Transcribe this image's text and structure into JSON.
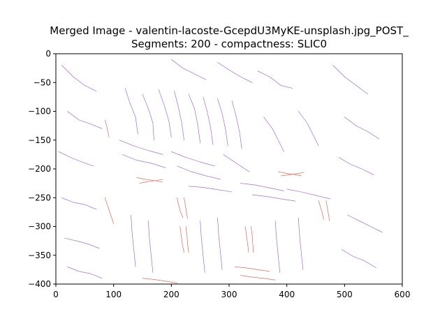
{
  "chart_data": {
    "type": "line",
    "title": "Merged Image - valentin-lacoste-GcepdU3MyKE-unsplash.jpg_POST_",
    "subtitle": "Segments: 200 - compactness: SLIC0",
    "xlabel": "",
    "ylabel": "",
    "xlim": [
      0,
      600
    ],
    "ylim": [
      -400,
      0
    ],
    "x_ticks": [
      0,
      100,
      200,
      300,
      400,
      500,
      600
    ],
    "y_ticks": [
      0,
      -50,
      -100,
      -150,
      -200,
      -250,
      -300,
      -350,
      -400
    ],
    "x_tick_labels": [
      "0",
      "100",
      "200",
      "300",
      "400",
      "500",
      "600"
    ],
    "y_tick_labels": [
      "0",
      "−50",
      "−100",
      "−150",
      "−200",
      "−250",
      "−300",
      "−350",
      "−400"
    ],
    "grid": false,
    "legend": "none",
    "colors": {
      "purple_streams": "#9a4fd6",
      "red_streams": "#ee4a3a"
    },
    "series": [
      {
        "color": "purple",
        "values": [
          [
            [
              120,
              -60
            ],
            [
              128,
              -85
            ],
            [
              138,
              -110
            ],
            [
              142,
              -140
            ]
          ],
          [
            [
              150,
              -70
            ],
            [
              160,
              -95
            ],
            [
              168,
              -120
            ],
            [
              170,
              -150
            ]
          ],
          [
            [
              178,
              -62
            ],
            [
              188,
              -90
            ],
            [
              196,
              -118
            ],
            [
              200,
              -145
            ]
          ],
          [
            [
              205,
              -65
            ],
            [
              212,
              -92
            ],
            [
              218,
              -120
            ],
            [
              222,
              -150
            ]
          ],
          [
            [
              230,
              -70
            ],
            [
              240,
              -95
            ],
            [
              246,
              -125
            ],
            [
              250,
              -155
            ]
          ],
          [
            [
              255,
              -75
            ],
            [
              262,
              -100
            ],
            [
              268,
              -128
            ],
            [
              272,
              -158
            ]
          ],
          [
            [
              280,
              -78
            ],
            [
              288,
              -104
            ],
            [
              294,
              -132
            ],
            [
              298,
              -160
            ]
          ],
          [
            [
              305,
              -82
            ],
            [
              312,
              -108
            ],
            [
              318,
              -135
            ],
            [
              322,
              -165
            ]
          ],
          [
            [
              110,
              -150
            ],
            [
              135,
              -160
            ],
            [
              160,
              -168
            ],
            [
              185,
              -175
            ]
          ],
          [
            [
              115,
              -175
            ],
            [
              140,
              -185
            ],
            [
              165,
              -190
            ],
            [
              190,
              -198
            ]
          ],
          [
            [
              200,
              -170
            ],
            [
              225,
              -180
            ],
            [
              250,
              -188
            ],
            [
              275,
              -195
            ]
          ],
          [
            [
              210,
              -195
            ],
            [
              235,
              -205
            ],
            [
              260,
              -212
            ],
            [
              285,
              -218
            ]
          ],
          [
            [
              290,
              -175
            ],
            [
              305,
              -185
            ],
            [
              320,
              -195
            ],
            [
              335,
              -205
            ]
          ],
          [
            [
              230,
              -230
            ],
            [
              255,
              -232
            ],
            [
              280,
              -236
            ],
            [
              305,
              -240
            ]
          ],
          [
            [
              320,
              -225
            ],
            [
              345,
              -228
            ],
            [
              370,
              -233
            ],
            [
              395,
              -238
            ]
          ],
          [
            [
              340,
              -245
            ],
            [
              365,
              -248
            ],
            [
              390,
              -252
            ],
            [
              415,
              -256
            ]
          ],
          [
            [
              400,
              -235
            ],
            [
              425,
              -240
            ],
            [
              450,
              -246
            ],
            [
              475,
              -252
            ]
          ],
          [
            [
              10,
              -20
            ],
            [
              30,
              -40
            ],
            [
              50,
              -55
            ],
            [
              70,
              -65
            ]
          ],
          [
            [
              20,
              -100
            ],
            [
              40,
              -115
            ],
            [
              60,
              -122
            ],
            [
              80,
              -130
            ]
          ],
          [
            [
              5,
              -170
            ],
            [
              25,
              -180
            ],
            [
              45,
              -188
            ],
            [
              65,
              -195
            ]
          ],
          [
            [
              10,
              -250
            ],
            [
              30,
              -258
            ],
            [
              50,
              -262
            ],
            [
              70,
              -270
            ]
          ],
          [
            [
              15,
              -320
            ],
            [
              35,
              -325
            ],
            [
              55,
              -330
            ],
            [
              75,
              -338
            ]
          ],
          [
            [
              20,
              -370
            ],
            [
              40,
              -378
            ],
            [
              60,
              -382
            ],
            [
              80,
              -390
            ]
          ],
          [
            [
              480,
              -20
            ],
            [
              500,
              -40
            ],
            [
              520,
              -55
            ],
            [
              540,
              -70
            ]
          ],
          [
            [
              500,
              -110
            ],
            [
              520,
              -125
            ],
            [
              540,
              -135
            ],
            [
              560,
              -148
            ]
          ],
          [
            [
              490,
              -180
            ],
            [
              510,
              -192
            ],
            [
              530,
              -200
            ],
            [
              550,
              -210
            ]
          ],
          [
            [
              505,
              -280
            ],
            [
              525,
              -290
            ],
            [
              545,
              -300
            ],
            [
              565,
              -310
            ]
          ],
          [
            [
              495,
              -340
            ],
            [
              515,
              -352
            ],
            [
              535,
              -360
            ],
            [
              555,
              -372
            ]
          ],
          [
            [
              350,
              -30
            ],
            [
              370,
              -40
            ],
            [
              390,
              -55
            ],
            [
              410,
              -60
            ]
          ],
          [
            [
              360,
              -110
            ],
            [
              375,
              -130
            ],
            [
              385,
              -150
            ],
            [
              395,
              -170
            ]
          ],
          [
            [
              420,
              -100
            ],
            [
              435,
              -120
            ],
            [
              445,
              -140
            ],
            [
              455,
              -160
            ]
          ],
          [
            [
              130,
              -280
            ],
            [
              132,
              -310
            ],
            [
              135,
              -340
            ],
            [
              138,
              -370
            ]
          ],
          [
            [
              160,
              -290
            ],
            [
              162,
              -320
            ],
            [
              165,
              -350
            ],
            [
              168,
              -380
            ]
          ],
          [
            [
              250,
              -290
            ],
            [
              252,
              -320
            ],
            [
              255,
              -350
            ],
            [
              258,
              -380
            ]
          ],
          [
            [
              280,
              -285
            ],
            [
              282,
              -315
            ],
            [
              285,
              -345
            ],
            [
              288,
              -375
            ]
          ],
          [
            [
              380,
              -290
            ],
            [
              382,
              -320
            ],
            [
              385,
              -350
            ],
            [
              388,
              -380
            ]
          ],
          [
            [
              420,
              -285
            ],
            [
              422,
              -315
            ],
            [
              425,
              -345
            ],
            [
              428,
              -375
            ]
          ],
          [
            [
              200,
              -10
            ],
            [
              220,
              -25
            ],
            [
              240,
              -35
            ],
            [
              260,
              -45
            ]
          ],
          [
            [
              280,
              -15
            ],
            [
              300,
              -28
            ],
            [
              320,
              -40
            ],
            [
              340,
              -50
            ]
          ]
        ]
      },
      {
        "color": "red",
        "values": [
          [
            [
              140,
              -215
            ],
            [
              155,
              -218
            ],
            [
              170,
              -220
            ],
            [
              185,
              -223
            ]
          ],
          [
            [
              145,
              -225
            ],
            [
              160,
              -222
            ],
            [
              175,
              -220
            ],
            [
              185,
              -218
            ]
          ],
          [
            [
              385,
              -205
            ],
            [
              400,
              -208
            ],
            [
              415,
              -210
            ],
            [
              425,
              -212
            ]
          ],
          [
            [
              390,
              -212
            ],
            [
              405,
              -210
            ],
            [
              420,
              -208
            ],
            [
              430,
              -206
            ]
          ],
          [
            [
              210,
              -250
            ],
            [
              212,
              -260
            ],
            [
              215,
              -272
            ],
            [
              220,
              -285
            ]
          ],
          [
            [
              222,
              -250
            ],
            [
              224,
              -262
            ],
            [
              226,
              -274
            ],
            [
              228,
              -286
            ]
          ],
          [
            [
              215,
              -300
            ],
            [
              217,
              -315
            ],
            [
              219,
              -330
            ],
            [
              222,
              -345
            ]
          ],
          [
            [
              225,
              -300
            ],
            [
              227,
              -315
            ],
            [
              228,
              -330
            ],
            [
              230,
              -345
            ]
          ],
          [
            [
              328,
              -300
            ],
            [
              330,
              -315
            ],
            [
              332,
              -330
            ],
            [
              334,
              -345
            ]
          ],
          [
            [
              338,
              -300
            ],
            [
              340,
              -315
            ],
            [
              341,
              -330
            ],
            [
              342,
              -345
            ]
          ],
          [
            [
              455,
              -255
            ],
            [
              458,
              -265
            ],
            [
              461,
              -275
            ],
            [
              464,
              -288
            ]
          ],
          [
            [
              468,
              -255
            ],
            [
              470,
              -266
            ],
            [
              472,
              -278
            ],
            [
              474,
              -290
            ]
          ],
          [
            [
              85,
              -115
            ],
            [
              88,
              -125
            ],
            [
              90,
              -135
            ],
            [
              92,
              -145
            ]
          ],
          [
            [
              85,
              -250
            ],
            [
              90,
              -265
            ],
            [
              95,
              -280
            ],
            [
              100,
              -295
            ]
          ],
          [
            [
              150,
              -390
            ],
            [
              170,
              -392
            ],
            [
              190,
              -395
            ],
            [
              210,
              -398
            ]
          ],
          [
            [
              310,
              -370
            ],
            [
              330,
              -372
            ],
            [
              350,
              -375
            ],
            [
              370,
              -378
            ]
          ],
          [
            [
              320,
              -385
            ],
            [
              340,
              -388
            ],
            [
              360,
              -390
            ],
            [
              380,
              -393
            ]
          ]
        ]
      }
    ]
  }
}
